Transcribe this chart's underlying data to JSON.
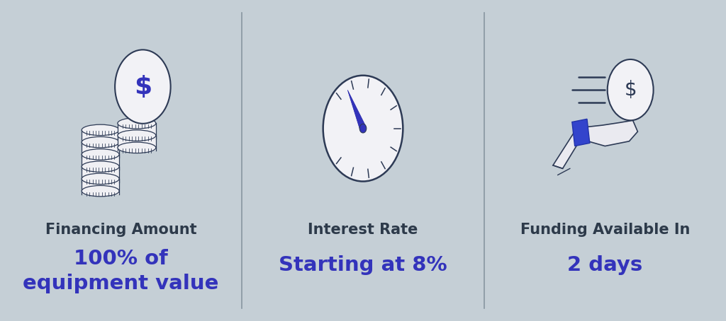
{
  "background_color": "#c5cfd6",
  "divider_color": "#8896a0",
  "title_color": "#2d3a4a",
  "value_color": "#3333bb",
  "title_fontsize": 15,
  "value_fontsize": 21,
  "panels": [
    {
      "title": "Financing Amount",
      "value": "100% of\nequipment value"
    },
    {
      "title": "Interest Rate",
      "value": "Starting at 8%"
    },
    {
      "title": "Funding Available In",
      "value": "2 days"
    }
  ],
  "figsize": [
    10.24,
    4.54
  ],
  "dpi": 100
}
